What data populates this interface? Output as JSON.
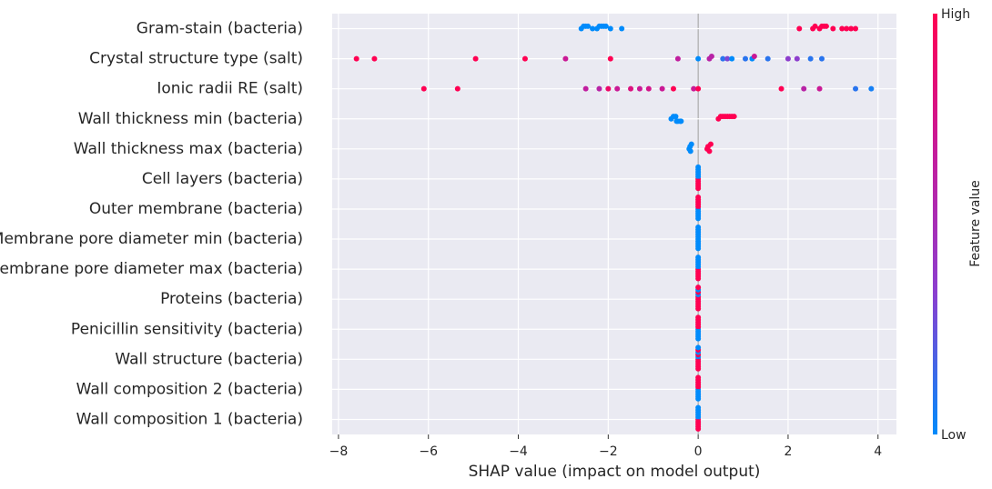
{
  "chart_data": {
    "type": "beeswarm",
    "xlabel": "SHAP value (impact on model output)",
    "colorbar_label": "Feature value",
    "colorbar_high": "High",
    "colorbar_low": "Low",
    "colormap": [
      "#008bfb",
      "#8a3fd0",
      "#c41c9c",
      "#ff0052"
    ],
    "xlim": [
      -8.14,
      4.41
    ],
    "xticks": [
      {
        "value": -8,
        "label": "−8"
      },
      {
        "value": -6,
        "label": "−6"
      },
      {
        "value": -4,
        "label": "−4"
      },
      {
        "value": -2,
        "label": "−2"
      },
      0,
      2,
      4
    ],
    "grid": true,
    "categories": [
      "Gram-stain (bacteria)",
      "Crystal structure type (salt)",
      "Ionic radii RE (salt)",
      "Wall thickness min (bacteria)",
      "Wall thickness max (bacteria)",
      "Cell layers (bacteria)",
      "Outer membrane (bacteria)",
      "Membrane pore diameter min (bacteria)",
      "Membrane pore diameter max (bacteria)",
      "Proteins (bacteria)",
      "Penicillin sensitivity (bacteria)",
      "Wall structure (bacteria)",
      "Wall composition 2 (bacteria)",
      "Wall composition 1 (bacteria)"
    ],
    "points": [
      {
        "shap": [
          -2.6,
          -2.55,
          -2.5,
          -2.45,
          -2.35,
          -2.25,
          -2.2,
          -2.15,
          -2.1,
          -2.05,
          -1.95,
          -1.7,
          2.25,
          2.55,
          2.6,
          2.7,
          2.75,
          2.8,
          2.85,
          3.0,
          3.2,
          3.3,
          3.4,
          3.5
        ],
        "feature": [
          0,
          0,
          0,
          0,
          0,
          0,
          0,
          0,
          0,
          0,
          0,
          0,
          1,
          1,
          1,
          1,
          1,
          1,
          1,
          1,
          1,
          1,
          1,
          1
        ]
      },
      {
        "shap": [
          -7.6,
          -7.2,
          -4.95,
          -3.85,
          -2.95,
          -1.95,
          -0.45,
          0,
          0.25,
          0.3,
          0.55,
          0.65,
          0.75,
          1.05,
          1.2,
          1.25,
          1.55,
          2.0,
          2.2,
          2.5,
          2.75
        ],
        "feature": [
          1,
          1,
          1,
          1,
          0.7,
          1,
          0.65,
          0,
          0.6,
          0.6,
          0.1,
          0.3,
          0,
          0.1,
          0,
          0.7,
          0.1,
          0.35,
          0.35,
          0.1,
          0.1
        ]
      },
      {
        "shap": [
          -6.1,
          -5.35,
          -2.5,
          -2.2,
          -2.0,
          -1.8,
          -1.5,
          -1.3,
          -1.1,
          -0.8,
          -0.55,
          -0.1,
          0,
          1.85,
          2.35,
          2.7,
          3.5,
          3.85
        ],
        "feature": [
          1,
          1,
          0.65,
          0.6,
          0.9,
          0.7,
          0.8,
          0.7,
          0.75,
          0.7,
          1,
          0.7,
          1,
          1,
          0.6,
          0.7,
          0.1,
          0.05
        ]
      },
      {
        "shap": [
          -0.6,
          -0.55,
          -0.5,
          -0.48,
          -0.45,
          -0.4,
          -0.38,
          0.45,
          0.5,
          0.55,
          0.6,
          0.65,
          0.7,
          0.75,
          0.8
        ],
        "feature": [
          0,
          0,
          0,
          0,
          0,
          0,
          0,
          1,
          1,
          1,
          1,
          1,
          1,
          1,
          1
        ]
      },
      {
        "shap": [
          -0.2,
          -0.18,
          -0.17,
          -0.15,
          0.2,
          0.22,
          0.25,
          0.28
        ],
        "feature": [
          0,
          0,
          0,
          0,
          1,
          1,
          1,
          1
        ]
      },
      {
        "shap": [
          0,
          0,
          0,
          0,
          0,
          0,
          0,
          0,
          0,
          0
        ],
        "feature": [
          1,
          0,
          1,
          0,
          1,
          0,
          1,
          0,
          1,
          0
        ]
      },
      {
        "shap": [
          0,
          0,
          0,
          0,
          0,
          0,
          0,
          0,
          0,
          0
        ],
        "feature": [
          0,
          1,
          0,
          1,
          0,
          1,
          0,
          1,
          0,
          1
        ]
      },
      {
        "shap": [
          0,
          0,
          0,
          0,
          0,
          0,
          0,
          0,
          0,
          0
        ],
        "feature": [
          0,
          0,
          0,
          0,
          0,
          0,
          0,
          0,
          0,
          0
        ]
      },
      {
        "shap": [
          0,
          0,
          0,
          0,
          0,
          0,
          0,
          0,
          0,
          0
        ],
        "feature": [
          1,
          0,
          1,
          0,
          1,
          0,
          1,
          0,
          1,
          0
        ]
      },
      {
        "shap": [
          0,
          0,
          0,
          0,
          0,
          0,
          0,
          0,
          0,
          0
        ],
        "feature": [
          1,
          1,
          1,
          0,
          1,
          1,
          1,
          0,
          1,
          1
        ]
      },
      {
        "shap": [
          0,
          0,
          0,
          0,
          0,
          0,
          0,
          0,
          0,
          0
        ],
        "feature": [
          0,
          1,
          0,
          1,
          0,
          1,
          0,
          1,
          0,
          1
        ]
      },
      {
        "shap": [
          0,
          0,
          0,
          0,
          0,
          0,
          0,
          0,
          0,
          0
        ],
        "feature": [
          1,
          0,
          1,
          1,
          1,
          0,
          1,
          1,
          1,
          0
        ]
      },
      {
        "shap": [
          0,
          0,
          0,
          0,
          0,
          0,
          0,
          0,
          0,
          0
        ],
        "feature": [
          0,
          1,
          0,
          1,
          0,
          1,
          0,
          1,
          0,
          1
        ]
      },
      {
        "shap": [
          0,
          0,
          0,
          0,
          0,
          0,
          0,
          0,
          0,
          0
        ],
        "feature": [
          1,
          0,
          1,
          0,
          1,
          0,
          1,
          0,
          1,
          0
        ]
      }
    ]
  }
}
